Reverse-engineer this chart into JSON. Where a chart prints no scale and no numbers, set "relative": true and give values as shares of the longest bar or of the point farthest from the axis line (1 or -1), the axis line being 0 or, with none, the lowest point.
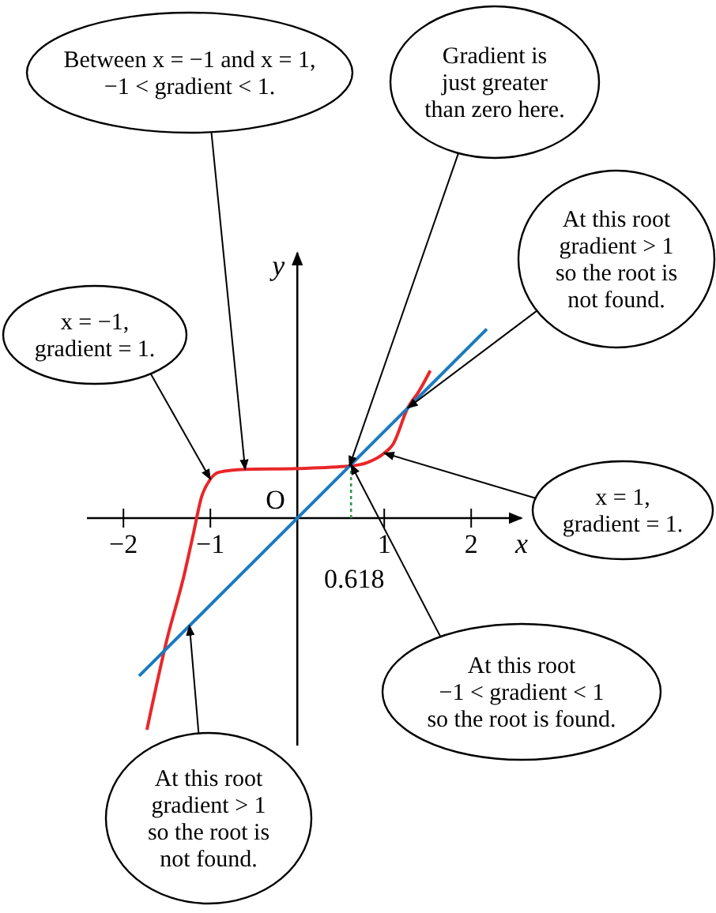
{
  "chart_data": {
    "type": "line",
    "relative": true,
    "xlabel": "x",
    "ylabel": "y",
    "xlim": [
      -2.42,
      2.58
    ],
    "xticks": [
      -2,
      -1,
      1,
      2
    ],
    "tick_labels": "x",
    "series": [
      {
        "color": "#e8272a",
        "x": [
          -1.73,
          -1.5,
          -1.3,
          -1.2,
          -1.1,
          -1.0,
          -0.9,
          -0.6,
          0,
          0.6,
          0.8,
          1.0,
          1.1,
          1.27,
          1.4,
          1.53
        ],
        "values": [
          -1,
          -0.574,
          -0.266,
          -0.082,
          0.102,
          0.184,
          0.217,
          0.23,
          0.234,
          0.246,
          0.262,
          0.307,
          0.348,
          0.52,
          0.6,
          0.697
        ]
      },
      {
        "color": "#1a7abf",
        "x": [
          -1.82,
          2.18
        ],
        "values": [
          -0.746,
          0.893
        ]
      }
    ],
    "ref_lines": [
      {
        "axis": "x",
        "value": 0.618,
        "label": "0.618",
        "color": "#2e9a4a",
        "line_style": "dotted"
      }
    ],
    "annotations": [
      {
        "text": "Between x = −1 and x = 1,\n−1 < gradient < 1.",
        "x": -0.6,
        "y": 0.23
      },
      {
        "text": "Gradient is\njust greater\nthan zero here.",
        "x": 0.6,
        "y": 0.246
      },
      {
        "text": "At this root\ngradient > 1\nso the root is\nnot found.",
        "x": 1.27,
        "y": 0.52
      },
      {
        "text": "x = −1,\ngradient = 1.",
        "x": -1.0,
        "y": 0.184
      },
      {
        "text": "x = 1,\ngradient = 1.",
        "x": 1.0,
        "y": 0.307
      },
      {
        "text": "At this root\n−1 < gradient < 1\nso the root is found.",
        "x": 0.618,
        "y": 0.253
      },
      {
        "text": "At this root\ngradient > 1\nso the root is\nnot found.",
        "x": -1.24,
        "y": -0.508
      },
      "O"
    ]
  }
}
